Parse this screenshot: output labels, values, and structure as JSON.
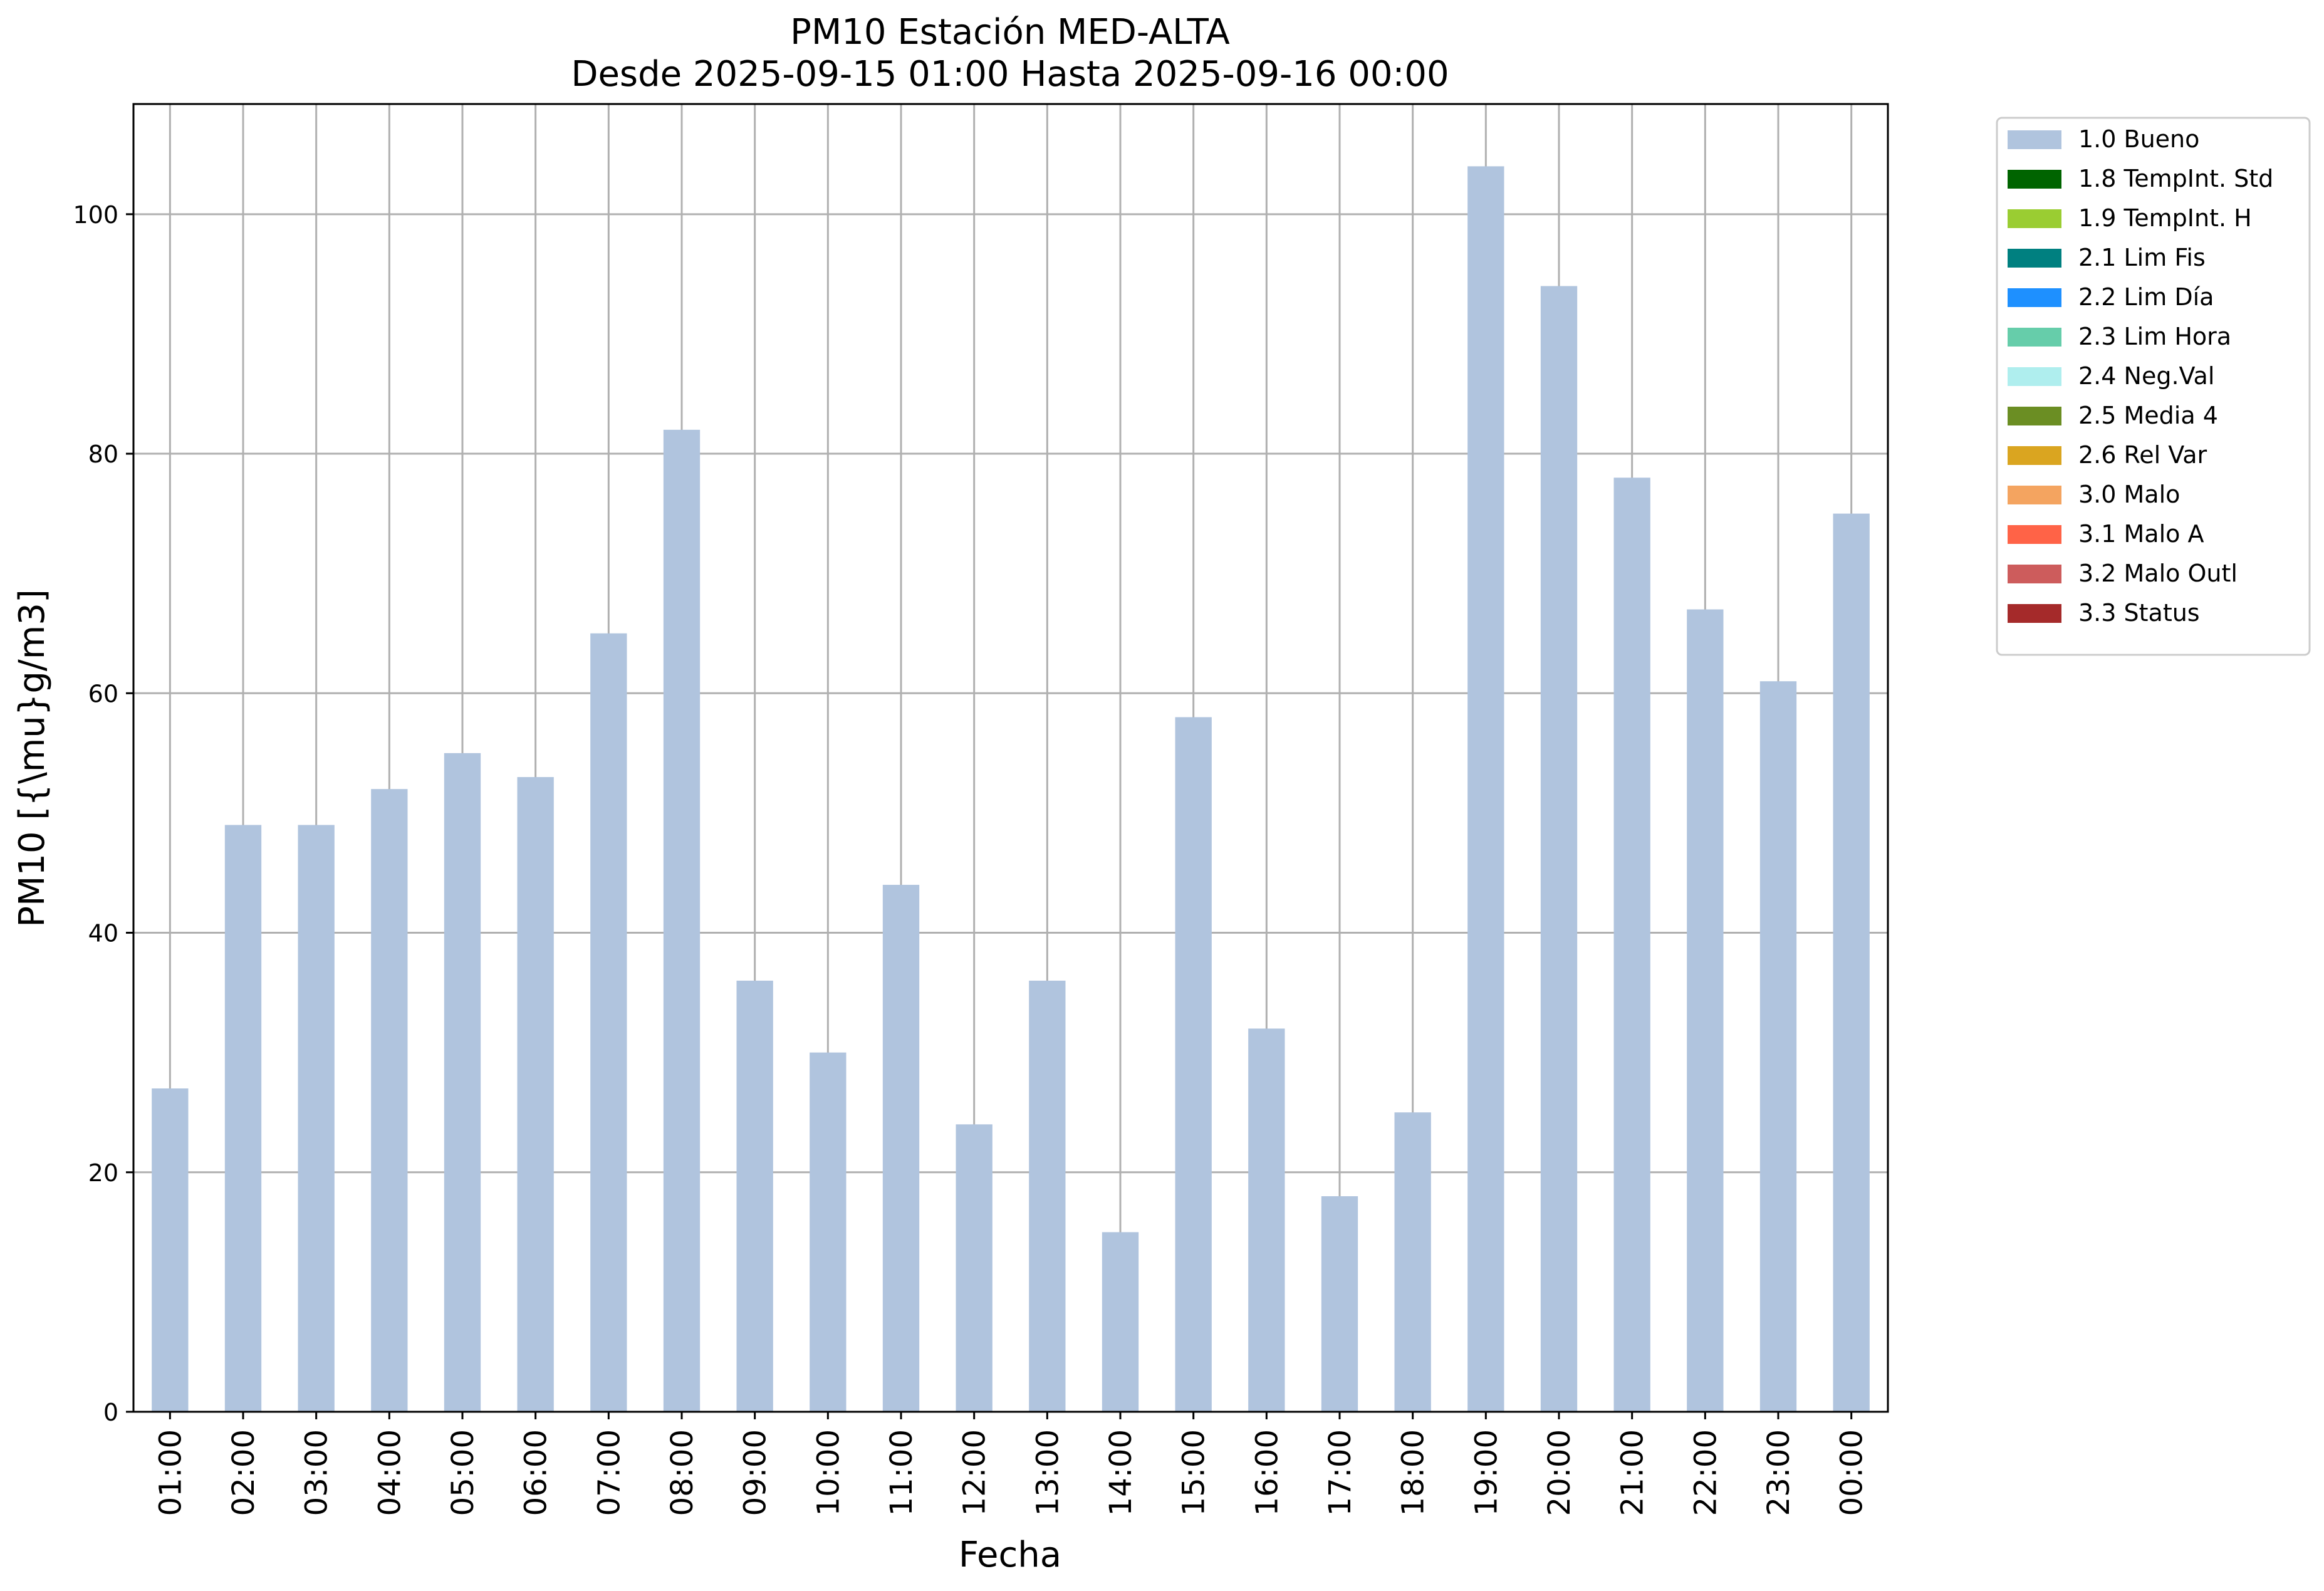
{
  "chart_data": {
    "type": "bar",
    "title": "PM10 Estación MED-ALTA",
    "subtitle": "Desde 2025-09-15 01:00 Hasta 2025-09-16 00:00",
    "xlabel": "Fecha",
    "ylabel": "PM10 [{\\mu}g/m3]",
    "ylim": [
      0,
      109.2
    ],
    "yticks": [
      0,
      20,
      40,
      60,
      80,
      100
    ],
    "grid": true,
    "legend_position": "outside-right-top",
    "categories": [
      "01:00",
      "02:00",
      "03:00",
      "04:00",
      "05:00",
      "06:00",
      "07:00",
      "08:00",
      "09:00",
      "10:00",
      "11:00",
      "12:00",
      "13:00",
      "14:00",
      "15:00",
      "16:00",
      "17:00",
      "18:00",
      "19:00",
      "20:00",
      "21:00",
      "22:00",
      "23:00",
      "00:00"
    ],
    "series": [
      {
        "name": "1.0 Bueno",
        "color": "#b0c4de",
        "values": [
          27,
          49,
          49,
          52,
          55,
          53,
          65,
          82,
          36,
          30,
          44,
          24,
          36,
          15,
          58,
          32,
          18,
          25,
          104,
          94,
          78,
          67,
          61,
          75
        ]
      }
    ],
    "legend": [
      {
        "label": "1.0 Bueno",
        "color": "#b0c4de"
      },
      {
        "label": "1.8 TempInt. Std",
        "color": "#006400"
      },
      {
        "label": "1.9 TempInt. H",
        "color": "#9acd32"
      },
      {
        "label": "2.1 Lim Fis",
        "color": "#008080"
      },
      {
        "label": "2.2 Lim Día",
        "color": "#1e90ff"
      },
      {
        "label": "2.3 Lim Hora",
        "color": "#66cdaa"
      },
      {
        "label": "2.4 Neg.Val",
        "color": "#afeeee"
      },
      {
        "label": "2.5 Media 4",
        "color": "#6b8e23"
      },
      {
        "label": "2.6 Rel Var",
        "color": "#daa520"
      },
      {
        "label": "3.0 Malo",
        "color": "#f4a460"
      },
      {
        "label": "3.1 Malo A",
        "color": "#ff6347"
      },
      {
        "label": "3.2 Malo Outl",
        "color": "#cd5c5c"
      },
      {
        "label": "3.3 Status",
        "color": "#a52a2a"
      }
    ]
  }
}
